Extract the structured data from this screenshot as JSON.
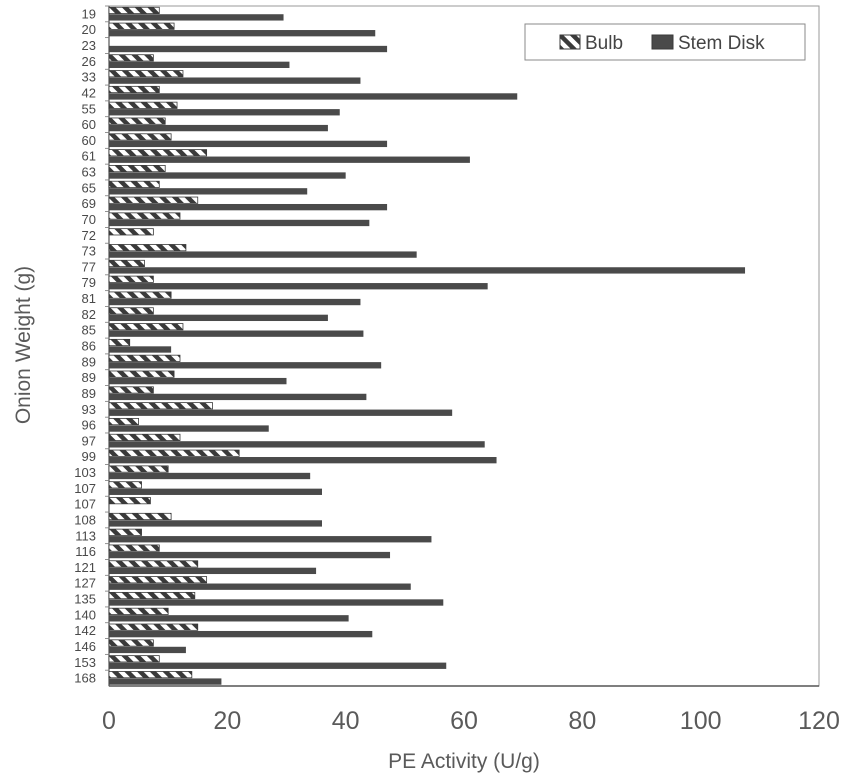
{
  "chart_data": {
    "type": "bar",
    "orientation": "horizontal",
    "title": "",
    "xlabel": "PE Activity (U/g)",
    "ylabel": "Onion Weight (g)",
    "xlim": [
      0,
      120
    ],
    "x_ticks": [
      "0",
      "20",
      "40",
      "60",
      "80",
      "100",
      "120"
    ],
    "grid": false,
    "legend_position": "top-right",
    "categories": [
      "19",
      "20",
      "23",
      "26",
      "33",
      "42",
      "55",
      "60",
      "60",
      "61",
      "63",
      "65",
      "69",
      "70",
      "72",
      "73",
      "77",
      "79",
      "81",
      "82",
      "85",
      "86",
      "89",
      "89",
      "89",
      "93",
      "96",
      "97",
      "99",
      "103",
      "107",
      "107",
      "108",
      "113",
      "116",
      "121",
      "127",
      "135",
      "140",
      "142",
      "146",
      "153",
      "168"
    ],
    "series": [
      {
        "name": "Bulb",
        "pattern": "hatched",
        "color": "#3a3a3a",
        "values": [
          8.5,
          11,
          0,
          7.5,
          12.5,
          8.5,
          11.5,
          9.5,
          10.5,
          16.5,
          9.5,
          8.5,
          15,
          12,
          7.5,
          13,
          6,
          7.5,
          10.5,
          7.5,
          12.5,
          3.5,
          12,
          11,
          7.5,
          17.5,
          5,
          12,
          22,
          10,
          5.5,
          7,
          10.5,
          5.5,
          8.5,
          15,
          16.5,
          14.5,
          10,
          15,
          7.5,
          8.5,
          14
        ]
      },
      {
        "name": "Stem Disk",
        "pattern": "solid",
        "color": "#4a4a4a",
        "values": [
          29.5,
          45,
          47,
          30.5,
          42.5,
          69,
          39,
          37,
          47,
          61,
          40,
          33.5,
          47,
          44,
          0,
          52,
          107.5,
          64,
          42.5,
          37,
          43,
          10.5,
          46,
          30,
          43.5,
          58,
          27,
          63.5,
          65.5,
          34,
          36,
          0,
          36,
          54.5,
          47.5,
          35,
          51,
          56.5,
          40.5,
          44.5,
          13,
          57,
          19
        ]
      }
    ]
  }
}
